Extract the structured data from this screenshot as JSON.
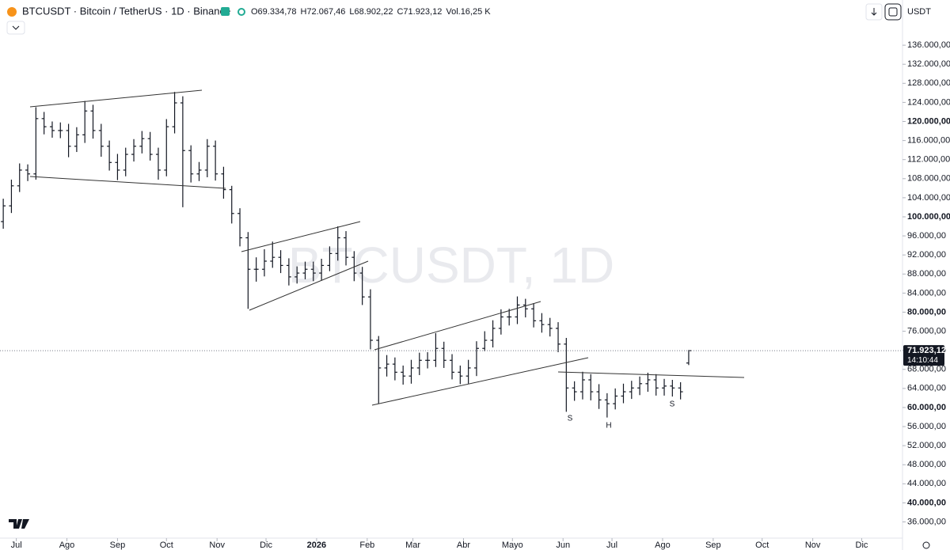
{
  "header": {
    "symbol": "BTCUSDT · Bitcoin / TetherUS · 1D · Binance",
    "ohlc": [
      "O69.334,78",
      "H72.067,46",
      "L68.902,22",
      "C71.923,12",
      "Vol.16,25 K"
    ],
    "currency": "USDT"
  },
  "watermark": "BTCUSDT, 1D",
  "last_price_label": "71.923,12",
  "countdown": "14:10:44",
  "annotations": [
    "S",
    "H",
    "S"
  ],
  "chart_data": {
    "type": "ohlc",
    "color": "#131722",
    "x": [
      "2025-06-23",
      "2025-06-28",
      "2025-07-03",
      "2025-07-08",
      "2025-07-13",
      "2025-07-18",
      "2025-07-23",
      "2025-07-28",
      "2025-08-02",
      "2025-08-07",
      "2025-08-12",
      "2025-08-17",
      "2025-08-22",
      "2025-08-27",
      "2025-09-01",
      "2025-09-06",
      "2025-09-11",
      "2025-09-16",
      "2025-09-21",
      "2025-09-26",
      "2025-10-01",
      "2025-10-06",
      "2025-10-11",
      "2025-10-16",
      "2025-10-21",
      "2025-10-26",
      "2025-10-31",
      "2025-11-05",
      "2025-11-10",
      "2025-11-15",
      "2025-11-20",
      "2025-11-25",
      "2025-11-30",
      "2025-12-05",
      "2025-12-10",
      "2025-12-15",
      "2025-12-20",
      "2025-12-25",
      "2025-12-30",
      "2026-01-04",
      "2026-01-09",
      "2026-01-14",
      "2026-01-19",
      "2026-01-24",
      "2026-01-29",
      "2026-02-03",
      "2026-02-08",
      "2026-02-13",
      "2026-02-18",
      "2026-02-23",
      "2026-02-28",
      "2026-03-05",
      "2026-03-10",
      "2026-03-15",
      "2026-03-20",
      "2026-03-25",
      "2026-03-30",
      "2026-04-04",
      "2026-04-09",
      "2026-04-14",
      "2026-04-19",
      "2026-04-24",
      "2026-04-29",
      "2026-05-04",
      "2026-05-09",
      "2026-05-14",
      "2026-05-19",
      "2026-05-24",
      "2026-05-29",
      "2026-06-03",
      "2026-06-08",
      "2026-06-13",
      "2026-06-18",
      "2026-06-23",
      "2026-06-28",
      "2026-07-03",
      "2026-07-08",
      "2026-07-13",
      "2026-07-18",
      "2026-07-23",
      "2026-07-28",
      "2026-08-02",
      "2026-08-07",
      "2026-08-12",
      "2026-08-17"
    ],
    "open": [
      99000,
      102300,
      106500,
      109800,
      109000,
      120600,
      118900,
      118100,
      118100,
      114800,
      117200,
      122200,
      118100,
      114800,
      111400,
      109800,
      113100,
      114800,
      116400,
      113100,
      109800,
      118900,
      123900,
      113900,
      109000,
      109800,
      114800,
      109000,
      105700,
      100700,
      95600,
      89000,
      89000,
      90700,
      91500,
      89800,
      87400,
      88200,
      89000,
      88200,
      89800,
      92300,
      95600,
      91500,
      88200,
      83200,
      74100,
      68300,
      69100,
      67400,
      66600,
      68300,
      69900,
      69900,
      72400,
      69900,
      67400,
      66600,
      68300,
      72400,
      74100,
      76600,
      79000,
      79000,
      81500,
      80700,
      78200,
      77400,
      76600,
      73300,
      64100,
      63300,
      65800,
      63300,
      61600,
      60800,
      62400,
      63300,
      64100,
      65000,
      65800,
      64100,
      64500,
      64100,
      69334.78
    ],
    "high": [
      103800,
      107800,
      111200,
      111000,
      123000,
      122000,
      120000,
      119800,
      119500,
      118800,
      124300,
      123500,
      119500,
      116000,
      113200,
      114500,
      116300,
      118000,
      117800,
      114500,
      120500,
      126200,
      125300,
      115000,
      111500,
      116300,
      116000,
      110500,
      106500,
      101800,
      96800,
      91500,
      93200,
      94800,
      93000,
      91300,
      89600,
      90600,
      90600,
      91200,
      93800,
      98000,
      97000,
      92800,
      89500,
      84800,
      75000,
      71000,
      70500,
      68800,
      70000,
      71500,
      71600,
      75600,
      73800,
      71200,
      68800,
      70000,
      73900,
      76000,
      78300,
      80600,
      80700,
      83300,
      82800,
      81900,
      79800,
      78800,
      77900,
      74600,
      65500,
      67500,
      67000,
      64900,
      63000,
      64000,
      65000,
      65600,
      66500,
      67300,
      67000,
      66000,
      65800,
      65300,
      72067.46
    ],
    "low": [
      97500,
      100800,
      105200,
      107500,
      107800,
      117300,
      116600,
      116500,
      112500,
      113600,
      115500,
      116400,
      112600,
      109700,
      107700,
      108500,
      111600,
      113300,
      111800,
      107800,
      108500,
      117500,
      102000,
      107200,
      107500,
      108300,
      107600,
      103800,
      98600,
      93800,
      80700,
      86400,
      87500,
      89300,
      88200,
      85600,
      86000,
      86900,
      86500,
      86600,
      88600,
      90800,
      89800,
      86500,
      81500,
      72200,
      60800,
      66500,
      65700,
      64800,
      65000,
      66800,
      68200,
      68500,
      68300,
      65900,
      64900,
      65000,
      66600,
      71800,
      72600,
      75300,
      77200,
      77500,
      78900,
      76800,
      75700,
      74900,
      71600,
      59100,
      61400,
      61700,
      61500,
      59700,
      57900,
      59600,
      60900,
      61800,
      62600,
      63300,
      62500,
      62500,
      62300,
      61700,
      68902.22
    ],
    "close": [
      102300,
      106500,
      109800,
      109000,
      120600,
      118900,
      118100,
      118100,
      114800,
      117200,
      122200,
      118100,
      114800,
      111400,
      109800,
      113100,
      114800,
      116400,
      113100,
      109800,
      118900,
      123900,
      113900,
      109000,
      109800,
      114800,
      109000,
      105700,
      100700,
      95600,
      89000,
      89000,
      90700,
      91500,
      89800,
      87400,
      88200,
      89000,
      88200,
      89800,
      92300,
      95600,
      91500,
      88200,
      83200,
      74100,
      68300,
      69100,
      67400,
      66600,
      68300,
      69900,
      69900,
      72400,
      69900,
      67400,
      66600,
      68300,
      72400,
      74100,
      76600,
      79000,
      79000,
      81500,
      80700,
      78200,
      77400,
      76600,
      73300,
      64100,
      63300,
      65800,
      63300,
      61600,
      60800,
      62400,
      63300,
      64100,
      65000,
      65800,
      64100,
      64500,
      64100,
      63300,
      71923.12
    ],
    "xlim": [
      "2025-06-21",
      "2026-12-26"
    ],
    "xticks": [
      {
        "value": "2025-07-01",
        "label": "Jul"
      },
      {
        "value": "2025-08-01",
        "label": "Ago"
      },
      {
        "value": "2025-09-01",
        "label": "Sep"
      },
      {
        "value": "2025-10-01",
        "label": "Oct"
      },
      {
        "value": "2025-11-01",
        "label": "Nov"
      },
      {
        "value": "2025-12-01",
        "label": "Dic"
      },
      {
        "value": "2026-01-01",
        "label": "2026"
      },
      {
        "value": "2026-02-01",
        "label": "Feb"
      },
      {
        "value": "2026-03-01",
        "label": "Mar"
      },
      {
        "value": "2026-04-01",
        "label": "Abr"
      },
      {
        "value": "2026-05-01",
        "label": "Mayo"
      },
      {
        "value": "2026-06-01",
        "label": "Jun"
      },
      {
        "value": "2026-07-01",
        "label": "Jul"
      },
      {
        "value": "2026-08-01",
        "label": "Ago"
      },
      {
        "value": "2026-09-01",
        "label": "Sep"
      },
      {
        "value": "2026-10-01",
        "label": "Oct"
      },
      {
        "value": "2026-11-01",
        "label": "Nov"
      },
      {
        "value": "2026-12-01",
        "label": "Dic"
      }
    ],
    "ylim": [
      32600,
      140500
    ],
    "yticks": [
      {
        "value": 36000,
        "label": "36.000,00"
      },
      {
        "value": 40000,
        "label": "40.000,00"
      },
      {
        "value": 44000,
        "label": "44.000,00"
      },
      {
        "value": 48000,
        "label": "48.000,00"
      },
      {
        "value": 52000,
        "label": "52.000,00"
      },
      {
        "value": 56000,
        "label": "56.000,00"
      },
      {
        "value": 60000,
        "label": "60.000,00"
      },
      {
        "value": 64000,
        "label": "64.000,00"
      },
      {
        "value": 68000,
        "label": "68.000,00"
      },
      {
        "value": 72000,
        "label": "72.000,00"
      },
      {
        "value": 76000,
        "label": "76.000,00"
      },
      {
        "value": 80000,
        "label": "80.000,00"
      },
      {
        "value": 84000,
        "label": "84.000,00"
      },
      {
        "value": 88000,
        "label": "88.000,00"
      },
      {
        "value": 92000,
        "label": "92.000,00"
      },
      {
        "value": 96000,
        "label": "96.000,00"
      },
      {
        "value": 100000,
        "label": "100.000,00"
      },
      {
        "value": 104000,
        "label": "104.000,00"
      },
      {
        "value": 108000,
        "label": "108.000,00"
      },
      {
        "value": 112000,
        "label": "112.000,00"
      },
      {
        "value": 116000,
        "label": "116.000,00"
      },
      {
        "value": 120000,
        "label": "120.000,00"
      },
      {
        "value": 124000,
        "label": "124.000,00"
      },
      {
        "value": 128000,
        "label": "128.000,00"
      },
      {
        "value": 132000,
        "label": "132.000,00"
      },
      {
        "value": 136000,
        "label": "136.000,00"
      }
    ]
  }
}
